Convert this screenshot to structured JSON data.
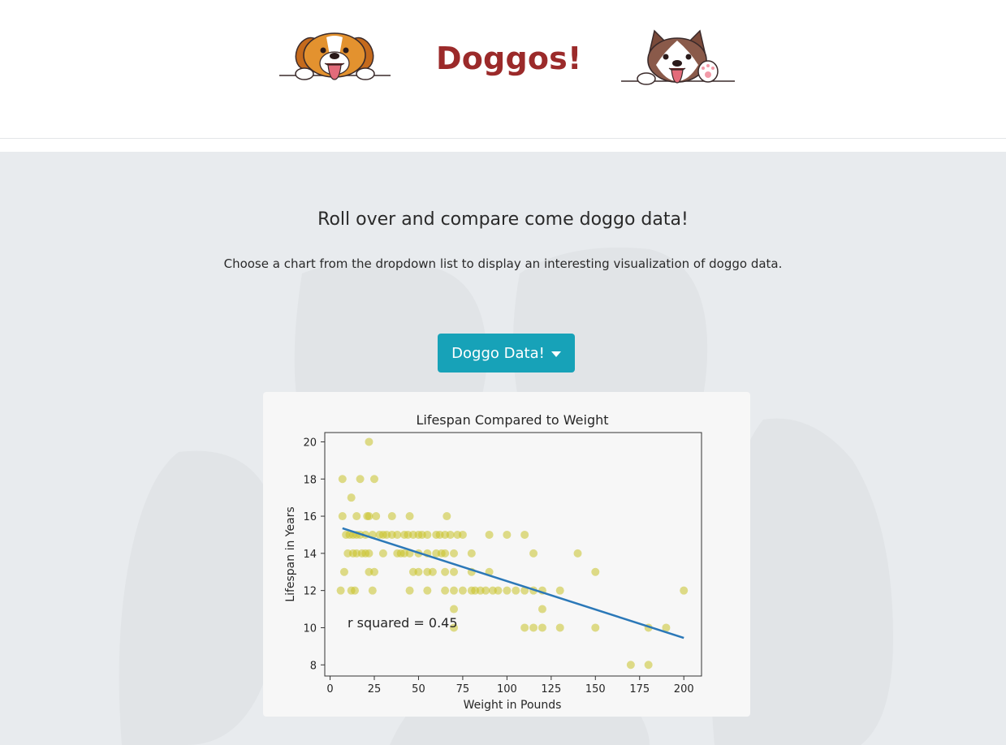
{
  "header": {
    "brand": "Doggos!"
  },
  "main": {
    "headline": "Roll over and compare come doggo data!",
    "subline": "Choose a chart from the dropdown list to display an interesting visualization of doggo data.",
    "dropdown_label": "Doggo Data!"
  },
  "colors": {
    "accent": "#17a2b8",
    "brand": "#9b2a2a",
    "scatter_points": "#c8c22a",
    "trend_line": "#2b78b8"
  },
  "chart_data": {
    "type": "scatter",
    "title": "Lifespan Compared to Weight",
    "xlabel": "Weight in Pounds",
    "ylabel": "Lifespan in Years",
    "xlim": [
      -3,
      210
    ],
    "ylim": [
      7.4,
      20.5
    ],
    "xticks": [
      0,
      25,
      50,
      75,
      100,
      125,
      150,
      175,
      200
    ],
    "yticks": [
      8,
      10,
      12,
      14,
      16,
      18,
      20
    ],
    "annotation": "r squared = 0.45",
    "grid": false,
    "points": [
      [
        7,
        18
      ],
      [
        22,
        20
      ],
      [
        25,
        18
      ],
      [
        17,
        18
      ],
      [
        12,
        17
      ],
      [
        7,
        16
      ],
      [
        15,
        16
      ],
      [
        21,
        16
      ],
      [
        22,
        16
      ],
      [
        26,
        16
      ],
      [
        35,
        16
      ],
      [
        45,
        16
      ],
      [
        66,
        16
      ],
      [
        9,
        15
      ],
      [
        11,
        15
      ],
      [
        13,
        15
      ],
      [
        15,
        15
      ],
      [
        17,
        15
      ],
      [
        20,
        15
      ],
      [
        24,
        15
      ],
      [
        28,
        15
      ],
      [
        30,
        15
      ],
      [
        32,
        15
      ],
      [
        35,
        15
      ],
      [
        38,
        15
      ],
      [
        42,
        15
      ],
      [
        44,
        15
      ],
      [
        47,
        15
      ],
      [
        50,
        15
      ],
      [
        52,
        15
      ],
      [
        55,
        15
      ],
      [
        60,
        15
      ],
      [
        62,
        15
      ],
      [
        65,
        15
      ],
      [
        68,
        15
      ],
      [
        72,
        15
      ],
      [
        75,
        15
      ],
      [
        90,
        15
      ],
      [
        100,
        15
      ],
      [
        110,
        15
      ],
      [
        10,
        14
      ],
      [
        13,
        14
      ],
      [
        15,
        14
      ],
      [
        18,
        14
      ],
      [
        20,
        14
      ],
      [
        22,
        14
      ],
      [
        30,
        14
      ],
      [
        38,
        14
      ],
      [
        40,
        14
      ],
      [
        42,
        14
      ],
      [
        45,
        14
      ],
      [
        50,
        14
      ],
      [
        55,
        14
      ],
      [
        60,
        14
      ],
      [
        63,
        14
      ],
      [
        65,
        14
      ],
      [
        70,
        14
      ],
      [
        80,
        14
      ],
      [
        115,
        14
      ],
      [
        140,
        14
      ],
      [
        8,
        13
      ],
      [
        22,
        13
      ],
      [
        25,
        13
      ],
      [
        47,
        13
      ],
      [
        50,
        13
      ],
      [
        55,
        13
      ],
      [
        58,
        13
      ],
      [
        65,
        13
      ],
      [
        70,
        13
      ],
      [
        80,
        13
      ],
      [
        90,
        13
      ],
      [
        150,
        13
      ],
      [
        6,
        12
      ],
      [
        12,
        12
      ],
      [
        14,
        12
      ],
      [
        24,
        12
      ],
      [
        45,
        12
      ],
      [
        55,
        12
      ],
      [
        65,
        12
      ],
      [
        70,
        12
      ],
      [
        75,
        12
      ],
      [
        80,
        12
      ],
      [
        82,
        12
      ],
      [
        85,
        12
      ],
      [
        88,
        12
      ],
      [
        92,
        12
      ],
      [
        95,
        12
      ],
      [
        100,
        12
      ],
      [
        105,
        12
      ],
      [
        110,
        12
      ],
      [
        115,
        12
      ],
      [
        120,
        12
      ],
      [
        130,
        12
      ],
      [
        200,
        12
      ],
      [
        70,
        11
      ],
      [
        120,
        11
      ],
      [
        70,
        10
      ],
      [
        110,
        10
      ],
      [
        115,
        10
      ],
      [
        120,
        10
      ],
      [
        130,
        10
      ],
      [
        150,
        10
      ],
      [
        180,
        10
      ],
      [
        190,
        10
      ],
      [
        170,
        8
      ],
      [
        180,
        8
      ]
    ],
    "trend_line": {
      "x": [
        7,
        200
      ],
      "y": [
        15.35,
        9.45
      ]
    }
  }
}
